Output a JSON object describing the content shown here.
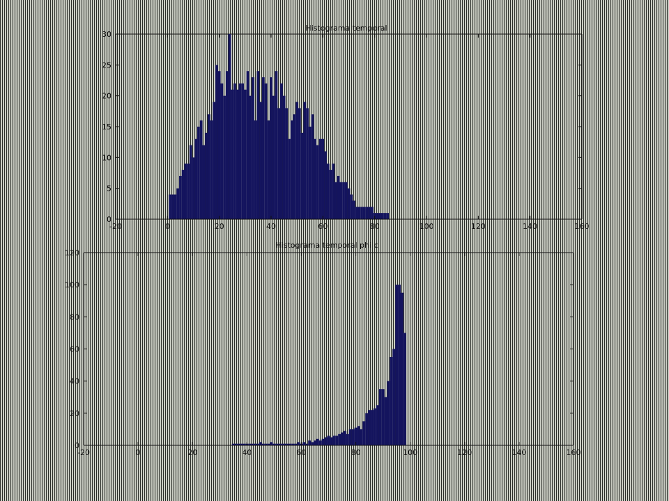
{
  "colors": {
    "bar": "#14145e",
    "axis": "#111111"
  },
  "chart_data": [
    {
      "type": "bar",
      "title": "Histograma temporal",
      "xlim": [
        -20,
        160
      ],
      "ylim": [
        0,
        30
      ],
      "xticks": [
        -20,
        0,
        20,
        40,
        60,
        80,
        100,
        120,
        140,
        160
      ],
      "yticks": [
        0,
        5,
        10,
        15,
        20,
        25,
        30
      ],
      "xtick_labels": [
        "-20",
        "0",
        "20",
        "40",
        "60",
        "80",
        "100",
        "120",
        "140",
        "160"
      ],
      "ytick_labels": [
        "0",
        "5",
        "10",
        "15",
        "20",
        "25",
        "30"
      ],
      "bin_width": 1,
      "x": [
        1,
        2,
        3,
        4,
        5,
        6,
        7,
        8,
        9,
        10,
        11,
        12,
        13,
        14,
        15,
        16,
        17,
        18,
        19,
        20,
        21,
        22,
        23,
        24,
        25,
        26,
        27,
        28,
        29,
        30,
        31,
        32,
        33,
        34,
        35,
        36,
        37,
        38,
        39,
        40,
        41,
        42,
        43,
        44,
        45,
        46,
        47,
        48,
        49,
        50,
        51,
        52,
        53,
        54,
        55,
        56,
        57,
        58,
        59,
        60,
        61,
        62,
        63,
        64,
        65,
        66,
        67,
        68,
        69,
        70,
        71,
        72,
        73,
        74,
        75,
        76,
        77,
        78,
        79,
        80,
        81,
        82,
        83,
        84,
        85,
        86
      ],
      "values": [
        4,
        4,
        4,
        5,
        7,
        8,
        9,
        9,
        12,
        10,
        13,
        15,
        16,
        12,
        14,
        17,
        16,
        19,
        25,
        24,
        22,
        20,
        24,
        30,
        21,
        22,
        21,
        22,
        22,
        21,
        24,
        20,
        23,
        16,
        24,
        19,
        23,
        22,
        16,
        23,
        20,
        24,
        18,
        22,
        20,
        18,
        13,
        16,
        17,
        19,
        18,
        14,
        19,
        18,
        15,
        17,
        13,
        12,
        13,
        13,
        11,
        9,
        8,
        9,
        6,
        7,
        6,
        6,
        6,
        5,
        4,
        3,
        2,
        2,
        2,
        2,
        2,
        2,
        2,
        1,
        1,
        1,
        1,
        1,
        1,
        0
      ]
    },
    {
      "type": "bar",
      "title": "Histograma temporal phi c",
      "xlim": [
        -20,
        160
      ],
      "ylim": [
        0,
        120
      ],
      "xticks": [
        -20,
        0,
        20,
        40,
        60,
        80,
        100,
        120,
        140,
        160
      ],
      "yticks": [
        0,
        20,
        40,
        60,
        80,
        100,
        120
      ],
      "xtick_labels": [
        "-20",
        "0",
        "20",
        "40",
        "60",
        "80",
        "100",
        "120",
        "140",
        "160"
      ],
      "ytick_labels": [
        "0",
        "20",
        "40",
        "60",
        "80",
        "100",
        "120"
      ],
      "bin_width": 1,
      "x": [
        35,
        36,
        37,
        38,
        39,
        40,
        41,
        42,
        43,
        44,
        45,
        46,
        47,
        48,
        49,
        50,
        51,
        52,
        53,
        54,
        55,
        56,
        57,
        58,
        59,
        60,
        61,
        62,
        63,
        64,
        65,
        66,
        67,
        68,
        69,
        70,
        71,
        72,
        73,
        74,
        75,
        76,
        77,
        78,
        79,
        80,
        81,
        82,
        83,
        84,
        85,
        86,
        87,
        88,
        89,
        90,
        91,
        92,
        93,
        94,
        95,
        96,
        97,
        98,
        99
      ],
      "values": [
        1,
        1,
        1,
        1,
        1,
        1,
        1,
        1,
        1,
        1,
        2,
        1,
        1,
        1,
        2,
        1,
        1,
        1,
        1,
        1,
        1,
        1,
        1,
        1,
        2,
        1,
        2,
        1,
        3,
        2,
        3,
        4,
        3,
        4,
        5,
        6,
        5,
        6,
        6,
        7,
        8,
        9,
        7,
        10,
        10,
        11,
        12,
        10,
        15,
        20,
        22,
        22,
        23,
        25,
        35,
        35,
        30,
        40,
        55,
        60,
        100,
        100,
        95,
        70,
        0
      ]
    }
  ]
}
